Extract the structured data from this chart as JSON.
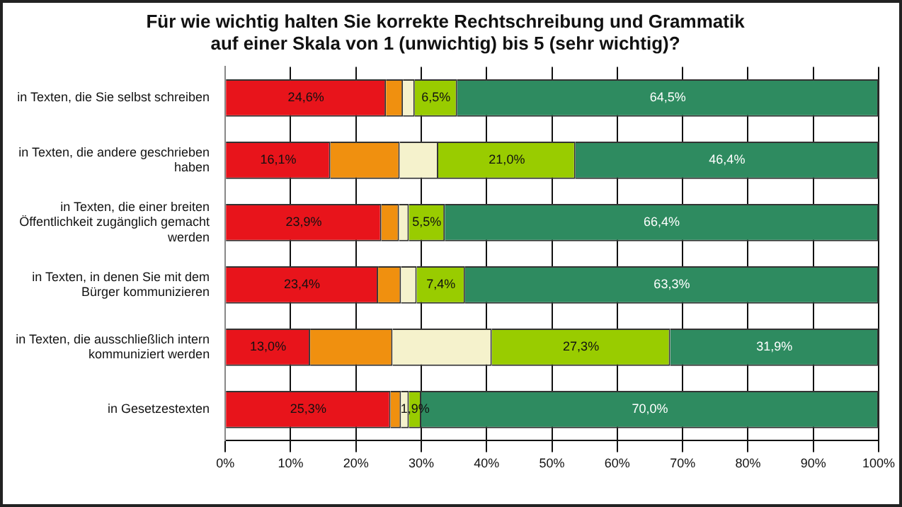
{
  "chart_data": {
    "type": "bar",
    "orientation": "horizontal",
    "stacked": true,
    "title": "Für wie wichtig halten Sie korrekte Rechtschreibung und Grammatik auf einer Skala von 1 (unwichtig) bis 5 (sehr wichtig)?",
    "categories": [
      "in Texten, die Sie selbst schreiben",
      "in Texten, die andere geschrieben haben",
      "in Texten, die einer breiten Öffentlichkeit zugänglich gemacht werden",
      "in Texten, in denen Sie mit dem Bürger kommunizieren",
      "in Texten, die ausschließlich intern kommuniziert werden",
      "in Gesetzestexten"
    ],
    "series": [
      {
        "color": "#e8141b",
        "values": [
          24.6,
          16.1,
          23.9,
          23.4,
          13.0,
          25.3
        ],
        "value_labels": [
          "24,6%",
          "16,1%",
          "23,9%",
          "23,4%",
          "13,0%",
          "25,3%"
        ]
      },
      {
        "color": "#f0900f",
        "values": [
          2.6,
          10.6,
          2.7,
          3.5,
          12.6,
          1.6
        ],
        "value_labels": [
          null,
          null,
          null,
          null,
          null,
          null
        ]
      },
      {
        "color": "#f5f2cc",
        "values": [
          1.8,
          5.9,
          1.5,
          2.4,
          15.2,
          1.2
        ],
        "value_labels": [
          null,
          null,
          null,
          null,
          null,
          null
        ]
      },
      {
        "color": "#99cc00",
        "values": [
          6.5,
          21.0,
          5.5,
          7.4,
          27.3,
          1.9
        ],
        "value_labels": [
          "6,5%",
          "21,0%",
          "5,5%",
          "7,4%",
          "27,3%",
          "1,9%"
        ]
      },
      {
        "color": "#2e8b60",
        "values": [
          64.5,
          46.4,
          66.4,
          63.3,
          31.9,
          70.0
        ],
        "value_labels": [
          "64,5%",
          "46,4%",
          "66,4%",
          "63,3%",
          "31,9%",
          "70,0%"
        ]
      }
    ],
    "xlim": [
      0,
      100
    ],
    "xticks": [
      {
        "value": 0,
        "label": "0%"
      },
      {
        "value": 10,
        "label": "10%"
      },
      {
        "value": 20,
        "label": "20%"
      },
      {
        "value": 30,
        "label": "30%"
      },
      {
        "value": 40,
        "label": "40%"
      },
      {
        "value": 50,
        "label": "50%"
      },
      {
        "value": 60,
        "label": "60%"
      },
      {
        "value": 70,
        "label": "70%"
      },
      {
        "value": 80,
        "label": "80%"
      },
      {
        "value": 90,
        "label": "90%"
      },
      {
        "value": 100,
        "label": "100%"
      }
    ],
    "grid": "x",
    "legend": false
  }
}
